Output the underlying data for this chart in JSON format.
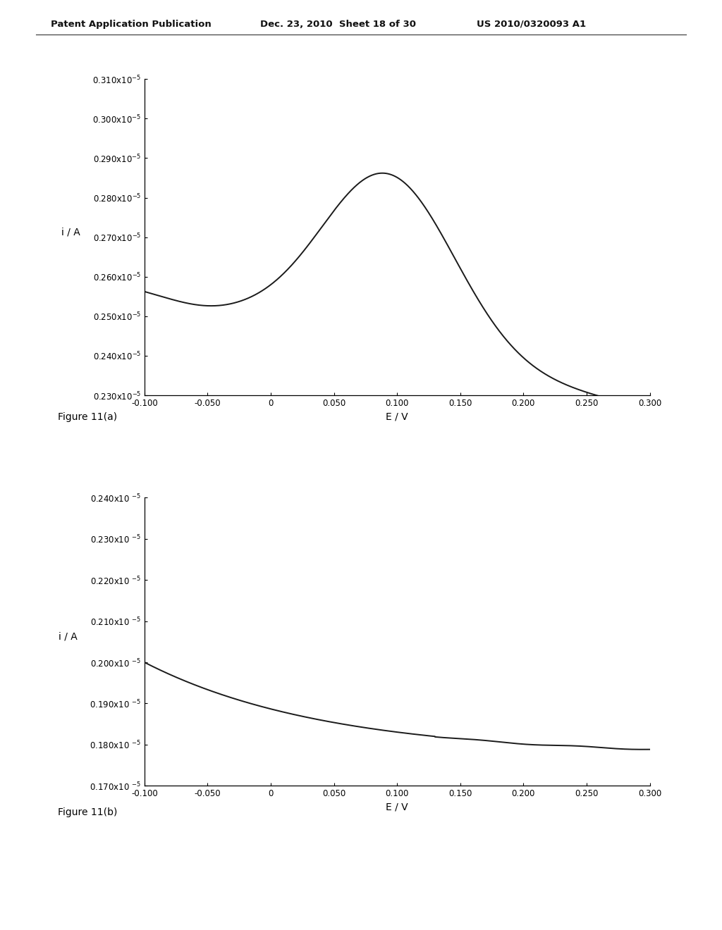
{
  "header_left": "Patent Application Publication",
  "header_mid": "Dec. 23, 2010  Sheet 18 of 30",
  "header_right": "US 2010/0320093 A1",
  "fig_a_label": "Figure 11(a)",
  "fig_b_label": "Figure 11(b)",
  "background_color": "#ffffff",
  "line_color": "#1a1a1a",
  "plot1": {
    "xlabel": "E / V",
    "ylabel": "i / A",
    "xmin": -0.1,
    "xmax": 0.3,
    "ymin": 2.3e-06,
    "ymax": 3.1e-06,
    "xticks": [
      -0.1,
      -0.05,
      0,
      0.05,
      0.1,
      0.15,
      0.2,
      0.25,
      0.3
    ],
    "yticks": [
      2.3e-06,
      2.4e-06,
      2.5e-06,
      2.6e-06,
      2.7e-06,
      2.8e-06,
      2.9e-06,
      3e-06,
      3.1e-06
    ],
    "xtick_labels": [
      "-0.100",
      "-0.050",
      "0",
      "0.050",
      "0.100",
      "0.150",
      "0.200",
      "0.250",
      "0.300"
    ],
    "ytick_labels": [
      "0.230x10",
      "0.240x10",
      "0.250x10",
      "0.260x10",
      "0.270x10",
      "0.280x10",
      "0.290x10",
      "0.300x10",
      "0.310x10"
    ]
  },
  "plot2": {
    "xlabel": "E / V",
    "ylabel": "i / A",
    "xmin": -0.1,
    "xmax": 0.3,
    "ymin": 1.7e-06,
    "ymax": 2.4e-06,
    "xticks": [
      -0.1,
      -0.05,
      0,
      0.05,
      0.1,
      0.15,
      0.2,
      0.25,
      0.3
    ],
    "yticks": [
      1.7e-06,
      1.8e-06,
      1.9e-06,
      2e-06,
      2.1e-06,
      2.2e-06,
      2.3e-06,
      2.4e-06
    ],
    "xtick_labels": [
      "-0.100",
      "-0.050",
      "0",
      "0.050",
      "0.100",
      "0.150",
      "0.200",
      "0.250",
      "0.300"
    ],
    "ytick_labels": [
      "0.170x10",
      "0.180x10",
      "0.190x10",
      "0.200x10",
      "0.210x10",
      "0.220x10",
      "0.230x10",
      "0.240x10"
    ]
  }
}
